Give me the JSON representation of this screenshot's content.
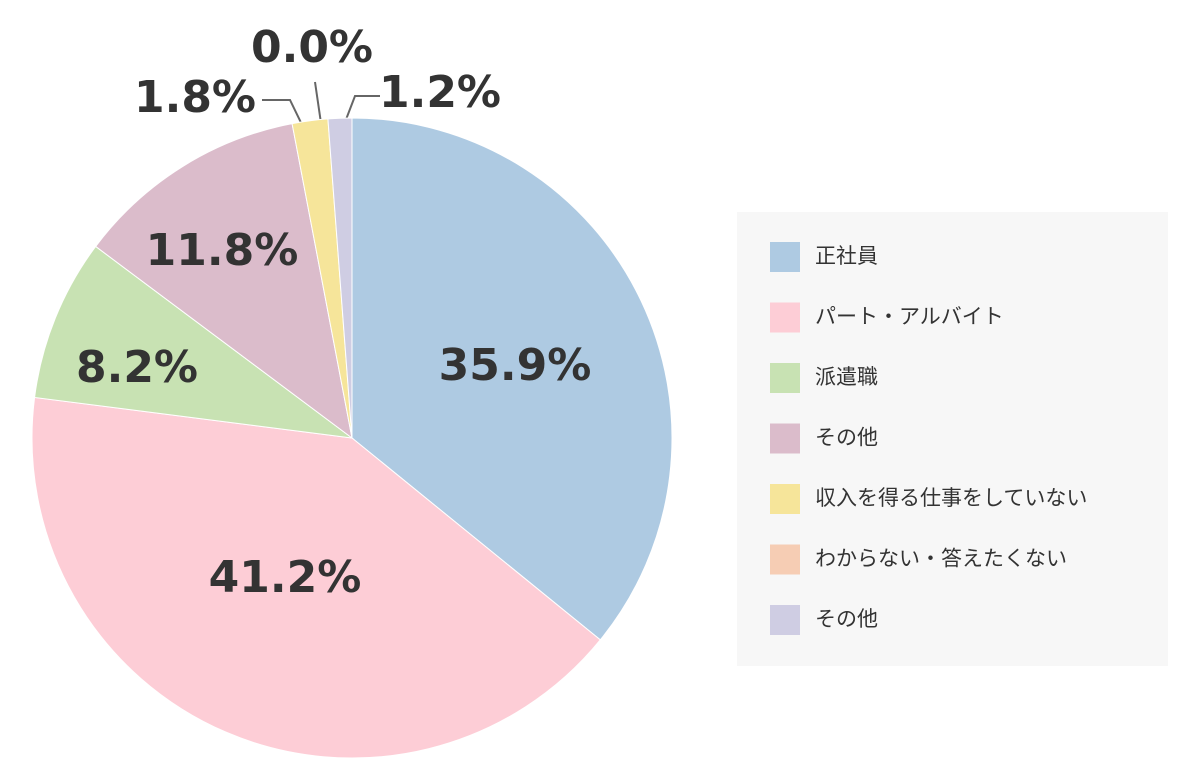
{
  "chart_data": {
    "type": "pie",
    "categories": [
      "正社員",
      "パート・アルバイト",
      "派遣職",
      "その他",
      "収入を得る仕事をしていない",
      "わからない・答えたくない",
      "その他"
    ],
    "values": [
      35.9,
      41.2,
      8.2,
      11.8,
      1.8,
      0.0,
      1.2
    ],
    "value_labels": [
      "35.9%",
      "41.2%",
      "8.2%",
      "11.8%",
      "1.8%",
      "0.0%",
      "1.2%"
    ],
    "colors": [
      "#aecae2",
      "#fdcdd6",
      "#c8e2b3",
      "#dbbccb",
      "#f6e59a",
      "#f6cdb4",
      "#cfcde3"
    ],
    "legend": "right"
  }
}
